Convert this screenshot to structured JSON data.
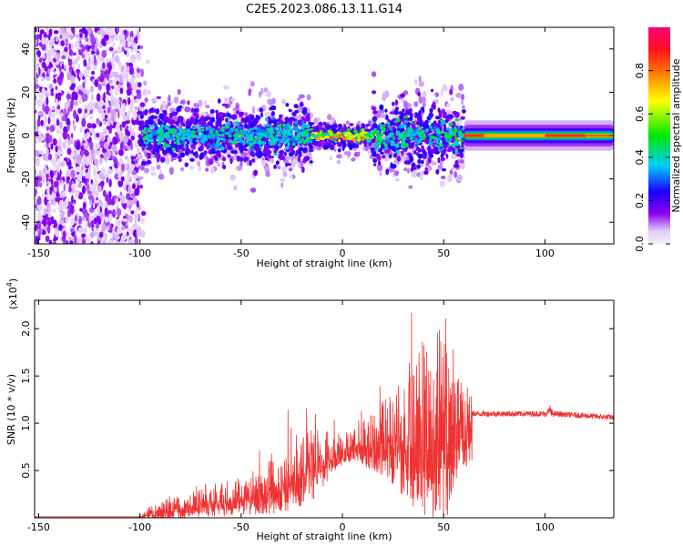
{
  "title": "C2E5.2023.086.13.11.G14",
  "chart_data": [
    {
      "type": "heatmap",
      "xlabel": "Height of straight line (km)",
      "ylabel": "Frequency (Hz)",
      "xlim": [
        -152,
        134
      ],
      "ylim": [
        -50,
        50
      ],
      "x_ticks": [
        -150,
        -100,
        -50,
        0,
        50,
        100
      ],
      "y_ticks": [
        -40,
        -20,
        0,
        20,
        40
      ],
      "colorbar": {
        "label": "Normalized spectral amplitude",
        "range": [
          0,
          1
        ],
        "ticks": [
          "0.0",
          "0.2",
          "0.4",
          "0.6",
          "0.8"
        ],
        "tick_values": [
          0.0,
          0.2,
          0.4,
          0.6,
          0.8
        ],
        "colors": [
          "#e0ccf8",
          "#7a00f0",
          "#0000ff",
          "#00e8ff",
          "#00e000",
          "#ffff00",
          "#ff2000",
          "#ff0078"
        ]
      },
      "regions": [
        {
          "x_range": [
            -152,
            -100
          ],
          "freq_spread": 50,
          "peak_amplitude": 0.12,
          "description_color": "#7a00f0"
        },
        {
          "x_range": [
            -100,
            -15
          ],
          "freq_spread": 8,
          "peak_amplitude": 0.45
        },
        {
          "x_range": [
            -15,
            15
          ],
          "freq_spread": 3,
          "peak_amplitude": 0.85
        },
        {
          "x_range": [
            15,
            60
          ],
          "freq_spread": 9,
          "peak_amplitude": 0.5
        },
        {
          "x_range": [
            60,
            134
          ],
          "freq_spread": 3,
          "peak_amplitude": 0.9
        }
      ]
    },
    {
      "type": "line",
      "xlabel": "Height of straight line (km)",
      "ylabel": "SNR (10 * v/v)",
      "y_scale_label": "(x10",
      "y_scale_exp": "4",
      "y_scale_close": ")",
      "xlim": [
        -152,
        134
      ],
      "ylim": [
        0,
        2.3
      ],
      "x_ticks": [
        -150,
        -100,
        -50,
        0,
        50,
        100
      ],
      "y_ticks": [
        "0.5",
        "1.0",
        "1.5",
        "2.0"
      ],
      "y_tick_values": [
        0.5,
        1.0,
        1.5,
        2.0
      ],
      "color": "#ee3333",
      "envelope": {
        "x": [
          -152,
          -100,
          -92,
          -60,
          -45,
          -35,
          -20,
          -15,
          -5,
          5,
          20,
          30,
          40,
          50,
          55,
          60,
          64,
          64,
          100,
          102,
          104,
          134
        ],
        "base": [
          0.01,
          0.01,
          0.08,
          0.2,
          0.25,
          0.35,
          0.55,
          0.6,
          0.7,
          0.78,
          0.85,
          0.95,
          1.0,
          1.05,
          1.05,
          1.05,
          1.05,
          1.1,
          1.1,
          1.12,
          1.1,
          1.06
        ],
        "noise": [
          0.0,
          0.0,
          0.15,
          0.2,
          0.25,
          0.35,
          0.5,
          0.5,
          0.25,
          0.2,
          0.45,
          0.8,
          1.1,
          1.2,
          0.8,
          0.6,
          0.5,
          0.03,
          0.03,
          0.08,
          0.03,
          0.03
        ]
      }
    }
  ]
}
